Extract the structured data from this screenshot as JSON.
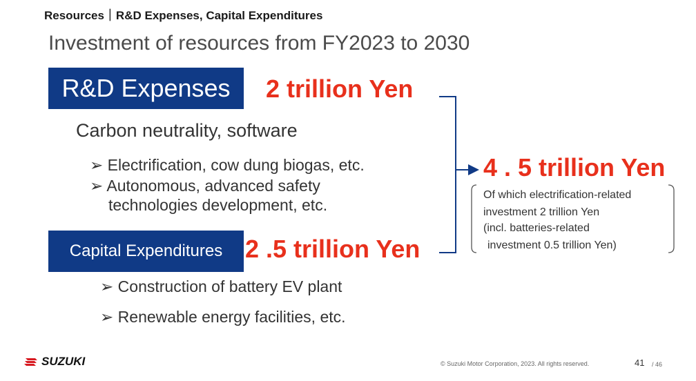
{
  "header": "Resources｜R&D Expenses, Capital Expenditures",
  "subtitle": "Investment of resources from FY2023 to 2030",
  "rd": {
    "label": "R&D Expenses",
    "amount": "2 trillion Yen",
    "focus": "Carbon neutrality, software",
    "bullets": [
      "Electrification, cow dung biogas, etc.",
      "Autonomous, advanced safety",
      "technologies development, etc."
    ]
  },
  "capex": {
    "label": "Capital Expenditures",
    "amount": "2 .5 trillion Yen",
    "bullets": [
      "Construction of battery EV plant",
      "Renewable energy facilities, etc."
    ]
  },
  "total": {
    "amount": "4 . 5 trillion Yen",
    "note": [
      "Of which electrification-related",
      "investment 2 trillion Yen",
      "(incl. batteries-related",
      "investment 0.5 trillion Yen)"
    ]
  },
  "bullet_glyph": "➢",
  "footer": {
    "brand": "SUZUKI",
    "copyright": "© Suzuki Motor Corporation, 2023. All rights reserved.",
    "page": "41",
    "page_total": "/ 46"
  },
  "colors": {
    "navy": "#103a86",
    "red": "#e8301c",
    "logo_red": "#d71920"
  }
}
